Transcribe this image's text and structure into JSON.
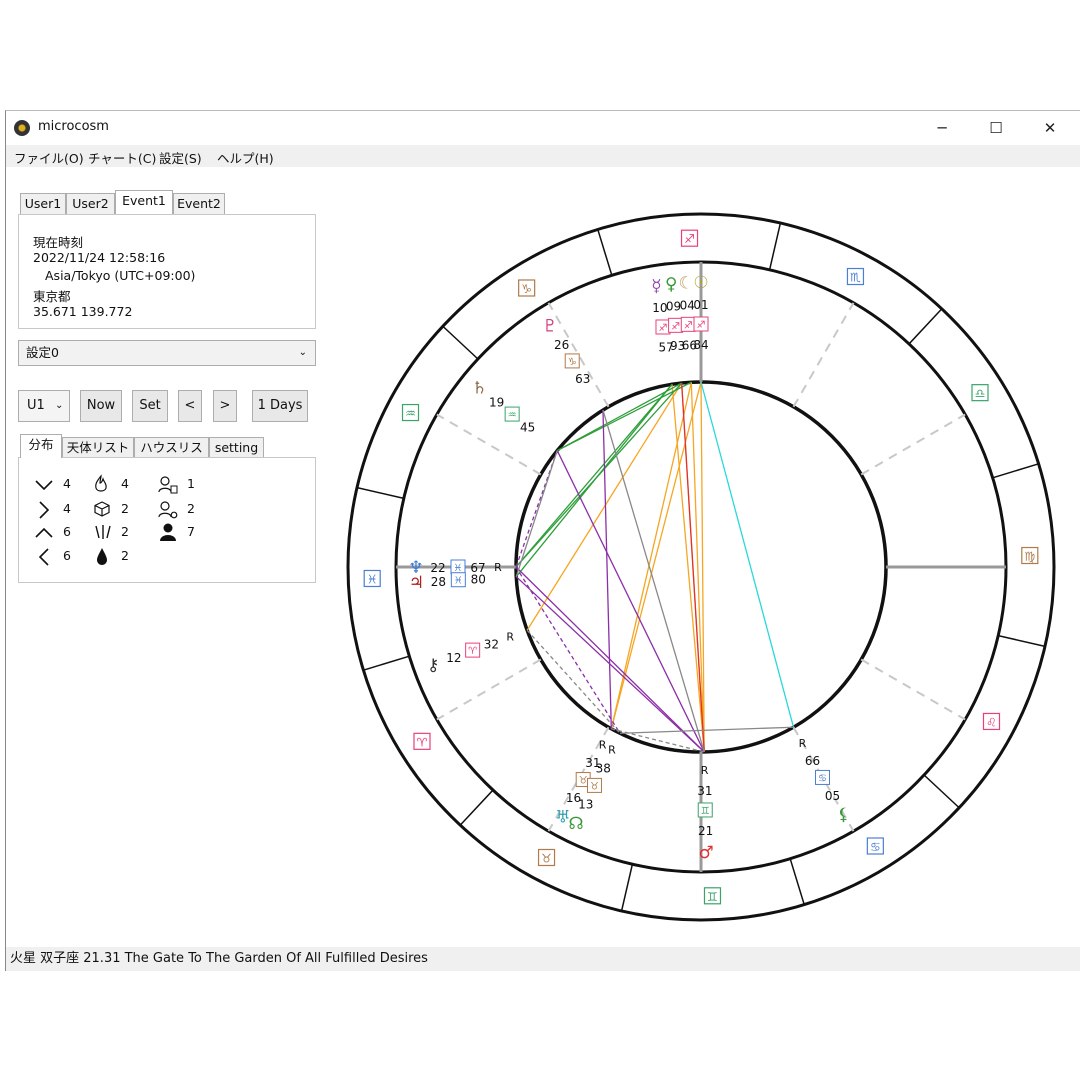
{
  "window": {
    "title": "microcosm",
    "minimize_glyph": "─",
    "maximize_glyph": "☐",
    "close_glyph": "✕"
  },
  "menu": [
    "ファイル(O)",
    "チャート(C)",
    "設定(S)",
    "ヘルプ(H)"
  ],
  "user_tabs": [
    {
      "label": "User1",
      "active": false
    },
    {
      "label": "User2",
      "active": false
    },
    {
      "label": "Event1",
      "active": true
    },
    {
      "label": "Event2",
      "active": false
    }
  ],
  "event_info": {
    "label": "現在時刻",
    "datetime": "2022/11/24 12:58:16",
    "timezone": "Asia/Tokyo (UTC+09:00)",
    "place": "東京都",
    "coords": "35.671 139.772"
  },
  "settings_select": {
    "value": "設定0"
  },
  "controls": {
    "user_select": "U1",
    "now": "Now",
    "set": "Set",
    "prev": "<",
    "next": ">",
    "step": "1 Days"
  },
  "sub_tabs": [
    {
      "label": "分布",
      "active": true
    },
    {
      "label": "天体リスト",
      "active": false
    },
    {
      "label": "ハウスリスト",
      "active": false
    },
    {
      "label": "setting",
      "active": false
    }
  ],
  "distribution": {
    "quadrants": [
      {
        "icon": "v-chevron-icon",
        "count": "4"
      },
      {
        "icon": "right-chevron-icon",
        "count": "4"
      },
      {
        "icon": "up-chevron-icon",
        "count": "6"
      },
      {
        "icon": "left-chevron-icon",
        "count": "6"
      }
    ],
    "elements": [
      {
        "icon": "fire-icon",
        "count": "4"
      },
      {
        "icon": "earth-cube-icon",
        "count": "2"
      },
      {
        "icon": "air-lines-icon",
        "count": "2"
      },
      {
        "icon": "water-drop-icon",
        "count": "2"
      }
    ],
    "modes": [
      {
        "icon": "person-cardinal-icon",
        "count": "1"
      },
      {
        "icon": "person-fixed-icon",
        "count": "2"
      },
      {
        "icon": "person-mutable-icon",
        "count": "7"
      }
    ]
  },
  "status": "火星 双子座 21.31 The Gate To The Garden Of All Fulfilled Desires",
  "chart_colors": {
    "fire": "#e8407a",
    "earth": "#b07a4a",
    "air": "#3aa36a",
    "water": "#4a7fd4",
    "trine": "#f5a623",
    "square": "#8b2fa8",
    "sextile": "#2e9e3a",
    "opposition": "#e03030",
    "quincunx": "#2ad8d8",
    "minor": "#888888"
  },
  "chart_data": {
    "type": "other",
    "zodiac_ring": [
      {
        "glyph": "♐",
        "element": "fire"
      },
      {
        "glyph": "♑",
        "element": "earth"
      },
      {
        "glyph": "♒",
        "element": "air"
      },
      {
        "glyph": "♓",
        "element": "water"
      },
      {
        "glyph": "♈",
        "element": "fire"
      },
      {
        "glyph": "♉",
        "element": "earth"
      },
      {
        "glyph": "♊",
        "element": "air"
      },
      {
        "glyph": "♋",
        "element": "water"
      },
      {
        "glyph": "♌",
        "element": "fire"
      },
      {
        "glyph": "♍",
        "element": "earth"
      },
      {
        "glyph": "♎",
        "element": "air"
      },
      {
        "glyph": "♏",
        "element": "water"
      }
    ],
    "planets": [
      {
        "glyph": "☿",
        "deg": "10",
        "min": "57",
        "sign": "♐",
        "color": "#9050b0",
        "retro": false
      },
      {
        "glyph": "♀",
        "deg": "09",
        "min": "93",
        "sign": "♐",
        "color": "#3a9a3a",
        "retro": false
      },
      {
        "glyph": "☾",
        "deg": "04",
        "min": "66",
        "sign": "♐",
        "color": "#c0a060",
        "retro": false
      },
      {
        "glyph": "☉",
        "deg": "01",
        "min": "84",
        "sign": "♐",
        "color": "#b0a030",
        "retro": false
      },
      {
        "glyph": "♇",
        "deg": "26",
        "min": "63",
        "sign": "♑",
        "color": "#d04080",
        "retro": false
      },
      {
        "glyph": "♄",
        "deg": "19",
        "min": "45",
        "sign": "♒",
        "color": "#8b6a4a",
        "retro": false
      },
      {
        "glyph": "♆",
        "deg": "22",
        "min": "67",
        "sign": "♓",
        "color": "#3a7ad0",
        "retro": true
      },
      {
        "glyph": "♃",
        "deg": "28",
        "min": "80",
        "sign": "♓",
        "color": "#b02020",
        "retro": false
      },
      {
        "glyph": "⚷",
        "deg": "12",
        "min": "32",
        "sign": "♈",
        "color": "#333333",
        "retro": true
      },
      {
        "glyph": "♅",
        "deg": "16",
        "min": "31",
        "sign": "♉",
        "color": "#30a0b0",
        "retro": true
      },
      {
        "glyph": "☊",
        "deg": "13",
        "min": "38",
        "sign": "♉",
        "color": "#3a9a3a",
        "retro": true
      },
      {
        "glyph": "♂",
        "deg": "21",
        "min": "31",
        "sign": "♊",
        "color": "#e03030",
        "retro": true
      },
      {
        "glyph": "⚸",
        "deg": "05",
        "min": "66",
        "sign": "♋",
        "color": "#3a9a3a",
        "retro": true
      }
    ],
    "retro_mark": "R"
  }
}
